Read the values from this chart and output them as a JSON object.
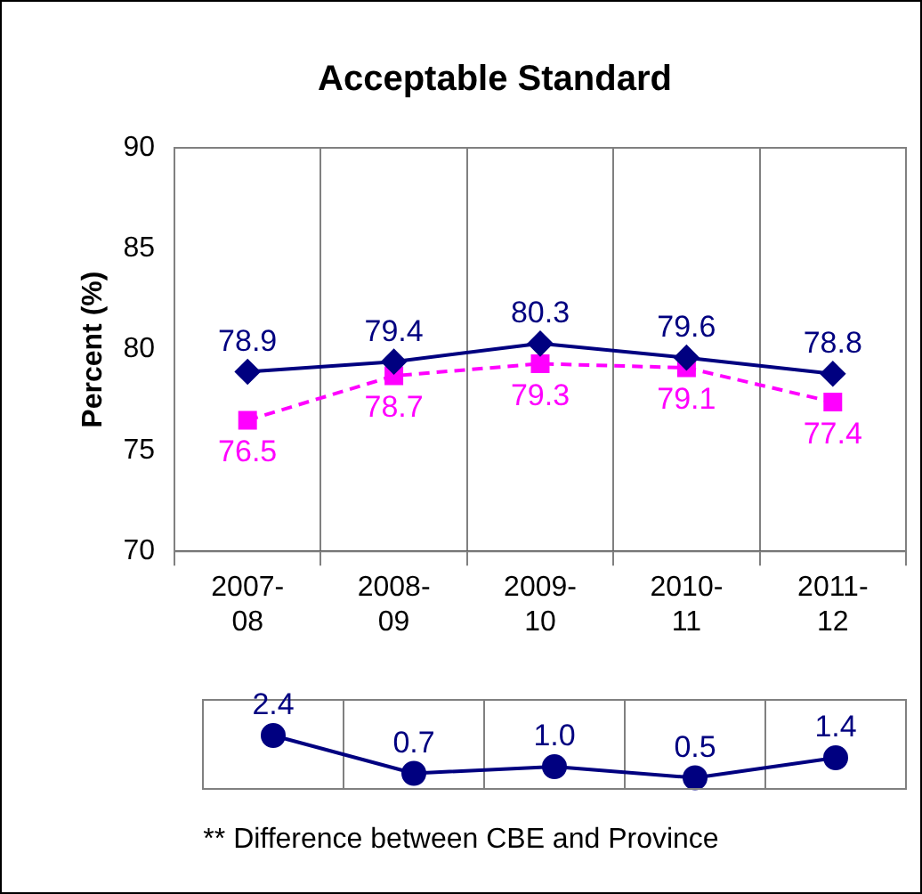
{
  "chart_data": [
    {
      "type": "line",
      "title": "Acceptable Standard",
      "ylabel": "Percent (%)",
      "categories": [
        "2007-08",
        "2008-09",
        "2009-10",
        "2010-11",
        "2011-12"
      ],
      "series": [
        {
          "color": "#000080",
          "values": [
            78.9,
            79.4,
            80.3,
            79.6,
            78.8
          ],
          "marker": "diamond",
          "line_style": "solid"
        },
        {
          "color": "#ff00ff",
          "values": [
            76.5,
            78.7,
            79.3,
            79.1,
            77.4
          ],
          "marker": "square",
          "line_style": "dashed"
        }
      ],
      "ylim": [
        70,
        90
      ],
      "yticks": [
        70,
        75,
        80,
        85,
        90
      ],
      "grid": "x",
      "legend": false,
      "data_labels": true
    },
    {
      "type": "line",
      "categories": [
        null,
        null,
        null,
        null,
        null
      ],
      "series": [
        {
          "color": "#000080",
          "values": [
            2.4,
            0.7,
            1.0,
            0.5,
            1.4
          ],
          "value_labels": [
            "2.4",
            "0.7",
            "1.0",
            "0.5",
            "1.4"
          ],
          "marker": "circle",
          "line_style": "solid"
        }
      ],
      "grid": "x",
      "legend": false,
      "tick_labels": false,
      "annotations": [
        "** Difference between CBE and Province"
      ]
    }
  ]
}
